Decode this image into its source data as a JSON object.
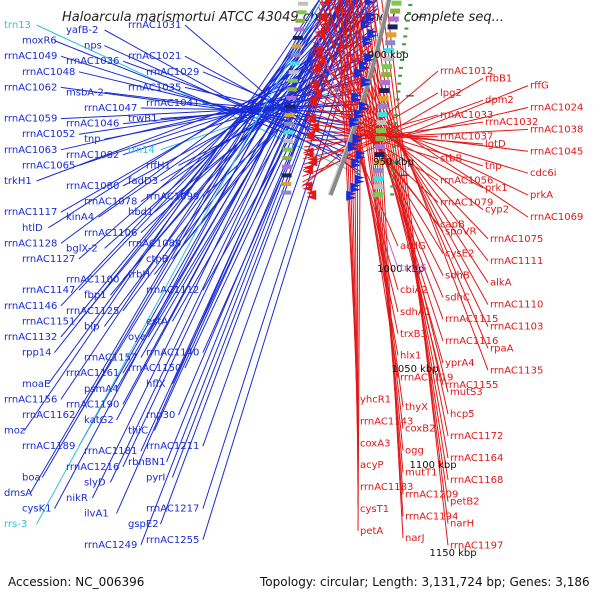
{
  "title": "Haloarcula marismortui ATCC 43049 chromosome I, complete seq...",
  "footer": {
    "accession": "Accession: NC_006396",
    "topology": "Topology: circular; Length: 3,131,724 bp; Genes: 3,186"
  },
  "colors": {
    "forward": "#1a2bd6",
    "reverse": "#e01818",
    "rna": "#2ec4d8",
    "misc": "#c060c0",
    "backbone": "#8a8a8a"
  },
  "scale_labels": [
    "900 kbp",
    "950 kbp",
    "1000 kbp",
    "1050 kbp",
    "1100 kbp",
    "1150 kbp"
  ],
  "left_labels": [
    {
      "text": "trn13",
      "kind": "rna"
    },
    {
      "text": "yafB-2",
      "kind": "forward"
    },
    {
      "text": "rrnAC1031",
      "kind": "forward"
    },
    {
      "text": "moxR6",
      "kind": "forward"
    },
    {
      "text": "nps",
      "kind": "forward"
    },
    {
      "text": "rrnAC1021",
      "kind": "forward"
    },
    {
      "text": "rrnAC1049",
      "kind": "forward"
    },
    {
      "text": "rrnAC1036",
      "kind": "forward"
    },
    {
      "text": "rrnAC1029",
      "kind": "forward"
    },
    {
      "text": "rrnAC1048",
      "kind": "forward"
    },
    {
      "text": "msbA-2",
      "kind": "forward"
    },
    {
      "text": "rrnAC1035",
      "kind": "forward"
    },
    {
      "text": "rrnAC1062",
      "kind": "forward"
    },
    {
      "text": "rrnAC1047",
      "kind": "forward"
    },
    {
      "text": "rrnAC1041",
      "kind": "forward"
    },
    {
      "text": "rrnAC1059",
      "kind": "forward"
    },
    {
      "text": "rrnAC1046",
      "kind": "forward"
    },
    {
      "text": "trwB1",
      "kind": "forward"
    },
    {
      "text": "rrnAC1052",
      "kind": "forward"
    },
    {
      "text": "tnp",
      "kind": "forward"
    },
    {
      "text": "trn14",
      "kind": "rna"
    },
    {
      "text": "rrnAC1063",
      "kind": "forward"
    },
    {
      "text": "rrnAC1082",
      "kind": "forward"
    },
    {
      "text": "rffH1",
      "kind": "forward"
    },
    {
      "text": "rrnAC1065",
      "kind": "forward"
    },
    {
      "text": "rrnAC1080",
      "kind": "forward"
    },
    {
      "text": "fadD3",
      "kind": "forward"
    },
    {
      "text": "trkH1",
      "kind": "forward"
    },
    {
      "text": "rrnAC1078",
      "kind": "forward"
    },
    {
      "text": "rrnAC1099",
      "kind": "forward"
    },
    {
      "text": "rrnAC1117",
      "kind": "forward"
    },
    {
      "text": "kinA4",
      "kind": "forward"
    },
    {
      "text": "hbd1",
      "kind": "forward"
    },
    {
      "text": "htlD",
      "kind": "forward"
    },
    {
      "text": "rrnAC1106",
      "kind": "forward"
    },
    {
      "text": "rrnAC1089",
      "kind": "forward"
    },
    {
      "text": "rrnAC1128",
      "kind": "forward"
    },
    {
      "text": "bglX-2",
      "kind": "forward"
    },
    {
      "text": "ctpB",
      "kind": "forward"
    },
    {
      "text": "rrnAC1127",
      "kind": "forward"
    },
    {
      "text": "rrnAC1100",
      "kind": "forward"
    },
    {
      "text": "trbH",
      "kind": "forward"
    },
    {
      "text": "rrnAC1147",
      "kind": "forward"
    },
    {
      "text": "fbp1",
      "kind": "forward"
    },
    {
      "text": "rrnAC1112",
      "kind": "forward"
    },
    {
      "text": "rrnAC1146",
      "kind": "forward"
    },
    {
      "text": "rrnAC1125",
      "kind": "forward"
    },
    {
      "text": "estA",
      "kind": "forward"
    },
    {
      "text": "rrnAC1151",
      "kind": "forward"
    },
    {
      "text": "blp",
      "kind": "forward"
    },
    {
      "text": "oye",
      "kind": "forward"
    },
    {
      "text": "rrnAC1132",
      "kind": "forward"
    },
    {
      "text": "rrnAC1157",
      "kind": "forward"
    },
    {
      "text": "rrnAC1140",
      "kind": "forward"
    },
    {
      "text": "rpp14",
      "kind": "forward"
    },
    {
      "text": "rrnAC1161",
      "kind": "forward"
    },
    {
      "text": "rrnAC1150",
      "kind": "forward"
    },
    {
      "text": "moaE",
      "kind": "forward"
    },
    {
      "text": "psmA4",
      "kind": "forward"
    },
    {
      "text": "hflX",
      "kind": "forward"
    },
    {
      "text": "rrnAC1156",
      "kind": "forward"
    },
    {
      "text": "rrnAC1190",
      "kind": "forward"
    },
    {
      "text": "rnp30",
      "kind": "forward"
    },
    {
      "text": "rrnAC1162",
      "kind": "forward"
    },
    {
      "text": "katG2",
      "kind": "forward"
    },
    {
      "text": "thiC",
      "kind": "forward"
    },
    {
      "text": "moz",
      "kind": "forward"
    },
    {
      "text": "rrnAC1181",
      "kind": "forward"
    },
    {
      "text": "rrnAC1211",
      "kind": "forward"
    },
    {
      "text": "rrnAC1189",
      "kind": "forward"
    },
    {
      "text": "rrnAC1216",
      "kind": "forward"
    },
    {
      "text": "rbnBN1",
      "kind": "forward"
    },
    {
      "text": "boa",
      "kind": "forward"
    },
    {
      "text": "slyD",
      "kind": "forward"
    },
    {
      "text": "pyrI",
      "kind": "forward"
    },
    {
      "text": "dmsA",
      "kind": "forward"
    },
    {
      "text": "nikR",
      "kind": "forward"
    },
    {
      "text": "rrnAC1217",
      "kind": "forward"
    },
    {
      "text": "cysK1",
      "kind": "forward"
    },
    {
      "text": "ilvA1",
      "kind": "forward"
    },
    {
      "text": "gspE2",
      "kind": "forward"
    },
    {
      "text": "rrs-3",
      "kind": "rna"
    },
    {
      "text": "rrnAC1249",
      "kind": "forward"
    },
    {
      "text": "rrnAC1255",
      "kind": "forward"
    }
  ],
  "right_labels": [
    {
      "text": "rrnAC1012",
      "kind": "reverse"
    },
    {
      "text": "rfbB1",
      "kind": "reverse"
    },
    {
      "text": "rffG",
      "kind": "reverse"
    },
    {
      "text": "lpg2",
      "kind": "reverse"
    },
    {
      "text": "dpm2",
      "kind": "reverse"
    },
    {
      "text": "rrnAC1024",
      "kind": "reverse"
    },
    {
      "text": "rrnAC1033",
      "kind": "reverse"
    },
    {
      "text": "rrnAC1032",
      "kind": "reverse"
    },
    {
      "text": "rrnAC1038",
      "kind": "reverse"
    },
    {
      "text": "rrnAC1037",
      "kind": "reverse"
    },
    {
      "text": "lgtD",
      "kind": "reverse"
    },
    {
      "text": "rrnAC1045",
      "kind": "reverse"
    },
    {
      "text": "stbB",
      "kind": "reverse"
    },
    {
      "text": "tnp",
      "kind": "reverse"
    },
    {
      "text": "cdc6i",
      "kind": "reverse"
    },
    {
      "text": "rrnAC1056",
      "kind": "reverse"
    },
    {
      "text": "prk1",
      "kind": "reverse"
    },
    {
      "text": "prkA",
      "kind": "reverse"
    },
    {
      "text": "rrnAC1079",
      "kind": "reverse"
    },
    {
      "text": "cyp2",
      "kind": "reverse"
    },
    {
      "text": "rrnAC1069",
      "kind": "reverse"
    },
    {
      "text": "capB",
      "kind": "reverse"
    },
    {
      "text": "spoVR",
      "kind": "reverse"
    },
    {
      "text": "rrnAC1075",
      "kind": "reverse"
    },
    {
      "text": "acdG",
      "kind": "reverse"
    },
    {
      "text": "cysE2",
      "kind": "reverse"
    },
    {
      "text": "rrnAC1111",
      "kind": "reverse"
    },
    {
      "text": "trn15",
      "kind": "misc"
    },
    {
      "text": "sdhB",
      "kind": "reverse"
    },
    {
      "text": "alkA",
      "kind": "reverse"
    },
    {
      "text": "cbiA2",
      "kind": "reverse"
    },
    {
      "text": "sdhC",
      "kind": "reverse"
    },
    {
      "text": "rrnAC1110",
      "kind": "reverse"
    },
    {
      "text": "sdhA1",
      "kind": "reverse"
    },
    {
      "text": "rrnAC1115",
      "kind": "reverse"
    },
    {
      "text": "rrnAC1103",
      "kind": "reverse"
    },
    {
      "text": "trxB3",
      "kind": "reverse"
    },
    {
      "text": "rrnAC1116",
      "kind": "reverse"
    },
    {
      "text": "rpaA",
      "kind": "reverse"
    },
    {
      "text": "hlx1",
      "kind": "reverse"
    },
    {
      "text": "yprA4",
      "kind": "reverse"
    },
    {
      "text": "rrnAC1135",
      "kind": "reverse"
    },
    {
      "text": "rrnAC1119",
      "kind": "reverse"
    },
    {
      "text": "rrnAC1155",
      "kind": "reverse"
    },
    {
      "text": "mutS3",
      "kind": "reverse"
    },
    {
      "text": "yhcR1",
      "kind": "reverse"
    },
    {
      "text": "thyX",
      "kind": "reverse"
    },
    {
      "text": "hcp5",
      "kind": "reverse"
    },
    {
      "text": "rrnAC1143",
      "kind": "reverse"
    },
    {
      "text": "coxB2",
      "kind": "reverse"
    },
    {
      "text": "rrnAC1172",
      "kind": "reverse"
    },
    {
      "text": "coxA3",
      "kind": "reverse"
    },
    {
      "text": "ogg",
      "kind": "reverse"
    },
    {
      "text": "rrnAC1164",
      "kind": "reverse"
    },
    {
      "text": "acyP",
      "kind": "reverse"
    },
    {
      "text": "mutT1",
      "kind": "reverse"
    },
    {
      "text": "rrnAC1168",
      "kind": "reverse"
    },
    {
      "text": "rrnAC1183",
      "kind": "reverse"
    },
    {
      "text": "rrnAC1209",
      "kind": "reverse"
    },
    {
      "text": "petB2",
      "kind": "reverse"
    },
    {
      "text": "cysT1",
      "kind": "reverse"
    },
    {
      "text": "rrnAC1194",
      "kind": "reverse"
    },
    {
      "text": "narH",
      "kind": "reverse"
    },
    {
      "text": "petA",
      "kind": "reverse"
    },
    {
      "text": "narJ",
      "kind": "reverse"
    },
    {
      "text": "rrnAC1197",
      "kind": "reverse"
    }
  ]
}
